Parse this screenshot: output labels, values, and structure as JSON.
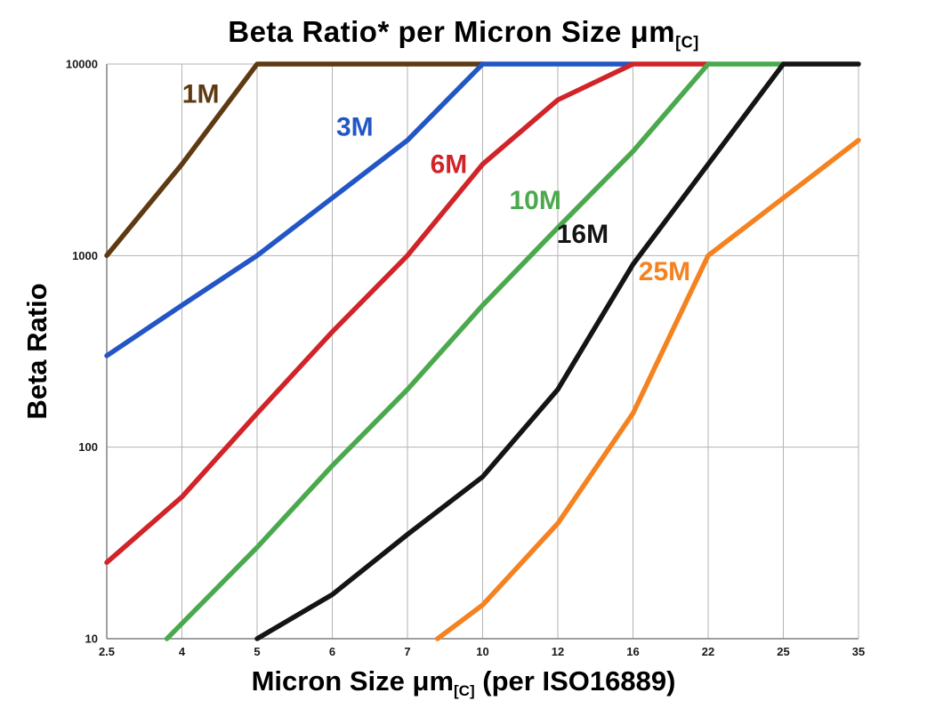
{
  "page": {
    "title_main": "Beta Ratio* per Micron Size μm",
    "title_sub": "[C]",
    "y_axis_title": "Beta Ratio",
    "x_axis_title_main": "Micron Size μm",
    "x_axis_title_sub": "[C]",
    "x_axis_title_tail": " (per ISO16889)"
  },
  "chart_data": {
    "type": "line",
    "title": "Beta Ratio* per Micron Size μm[C]",
    "xlabel": "Micron Size μm[C] (per ISO16889)",
    "ylabel": "Beta Ratio",
    "x_scale": "categorical",
    "y_scale": "log",
    "ylim": [
      10,
      10000
    ],
    "y_ticks": [
      10,
      100,
      1000,
      10000
    ],
    "categories": [
      "2.5",
      "4",
      "5",
      "6",
      "7",
      "10",
      "12",
      "16",
      "22",
      "25",
      "35"
    ],
    "grid": true,
    "legend_position": "inline-labels",
    "grid_color": "#b3b3b3",
    "axis_color": "#808080",
    "line_width": 5.5,
    "series": [
      {
        "name": "1M",
        "color": "#5d3a12",
        "points": [
          [
            0,
            1000
          ],
          [
            1,
            3000
          ],
          [
            2,
            10000
          ],
          [
            5,
            10000
          ]
        ],
        "label": {
          "text": "1M",
          "i": 1.25,
          "v": 7000
        }
      },
      {
        "name": "3M",
        "color": "#2356c5",
        "points": [
          [
            0,
            300
          ],
          [
            1,
            550
          ],
          [
            2,
            1000
          ],
          [
            3,
            2000
          ],
          [
            4,
            4000
          ],
          [
            5,
            10000
          ],
          [
            7,
            10000
          ]
        ],
        "label": {
          "text": "3M",
          "i": 3.3,
          "v": 4700
        }
      },
      {
        "name": "6M",
        "color": "#d02428",
        "points": [
          [
            0,
            25
          ],
          [
            1,
            55
          ],
          [
            2,
            150
          ],
          [
            3,
            400
          ],
          [
            4,
            1000
          ],
          [
            5,
            3000
          ],
          [
            6,
            6500
          ],
          [
            7,
            10000
          ],
          [
            8,
            10000
          ]
        ],
        "label": {
          "text": "6M",
          "i": 4.55,
          "v": 3000
        }
      },
      {
        "name": "10M",
        "color": "#4ba94d",
        "points": [
          [
            0.8,
            10
          ],
          [
            2,
            30
          ],
          [
            3,
            80
          ],
          [
            4,
            200
          ],
          [
            5,
            550
          ],
          [
            6,
            1400
          ],
          [
            7,
            3500
          ],
          [
            8,
            10000
          ],
          [
            9,
            10000
          ]
        ],
        "label": {
          "text": "10M",
          "i": 5.7,
          "v": 1950
        }
      },
      {
        "name": "16M",
        "color": "#141414",
        "points": [
          [
            2,
            10
          ],
          [
            3,
            17
          ],
          [
            4,
            35
          ],
          [
            5,
            70
          ],
          [
            6,
            200
          ],
          [
            7,
            900
          ],
          [
            8,
            3000
          ],
          [
            9,
            10000
          ],
          [
            10,
            10000
          ]
        ],
        "label": {
          "text": "16M",
          "i": 6.33,
          "v": 1300
        }
      },
      {
        "name": "25M",
        "color": "#f58220",
        "points": [
          [
            4.4,
            10
          ],
          [
            5,
            15
          ],
          [
            6,
            40
          ],
          [
            7,
            150
          ],
          [
            8,
            1000
          ],
          [
            9,
            2000
          ],
          [
            10,
            4000
          ]
        ],
        "label": {
          "text": "25M",
          "i": 7.42,
          "v": 830
        }
      }
    ]
  }
}
